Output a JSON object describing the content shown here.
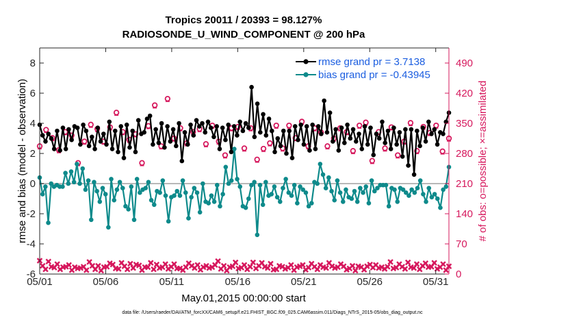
{
  "chart_data": {
    "type": "line",
    "title_line1": "Tropics 20011 / 20393 = 98.127%",
    "title_line2": "RADIOSONDE_U_WIND_COMPONENT @ 200 hPa",
    "xlabel": "May.01,2015 00:00:00 start",
    "ylabel_left": "rmse and bias (model - observation)",
    "ylabel_right": "# of obs: o=possible; ×=assimilated",
    "footer": "data file: /Users/raeder/DAI/ATM_forcXX/CAM6_setup/f.e21.FHIST_BGC.f09_025.CAM6assim.011/Diags_NTrS_2015-05/obs_diag_output.nc",
    "x_ticks": [
      "05/01",
      "05/06",
      "05/11",
      "05/16",
      "05/21",
      "05/26",
      "05/31"
    ],
    "x_tick_days": [
      0,
      5,
      10,
      15,
      20,
      25,
      30
    ],
    "xlim": [
      0,
      31
    ],
    "ylim_left": [
      -6,
      9
    ],
    "y_ticks_left": [
      "-6",
      "-4",
      "-2",
      "0",
      "2",
      "4",
      "6",
      "8"
    ],
    "y_tick_values_left": [
      -6,
      -4,
      -2,
      0,
      2,
      4,
      6,
      8
    ],
    "ylim_right": [
      0,
      525
    ],
    "y_ticks_right": [
      "0",
      "70",
      "140",
      "210",
      "280",
      "350",
      "420",
      "490"
    ],
    "y_tick_values_right": [
      0,
      70,
      140,
      210,
      280,
      350,
      420,
      490
    ],
    "series": [
      {
        "name": "rmse grand pr = 3.7138",
        "axis": "left",
        "color": "#000000",
        "values": [
          3.9,
          3.2,
          2.8,
          3.3,
          3.0,
          2.3,
          3.5,
          2.2,
          3.7,
          2.3,
          3.6,
          2.9,
          3.8,
          3.7,
          2.6,
          3.9,
          3.5,
          2.5,
          3.1,
          2.3,
          3.7,
          2.8,
          3.3,
          2.6,
          4.1,
          2.3,
          3.5,
          2.1,
          3.8,
          1.7,
          3.9,
          2.4,
          3.5,
          2.1,
          4.2,
          3.3,
          3.4,
          4.3,
          4.5,
          2.6,
          3.6,
          2.7,
          4.0,
          2.4,
          3.8,
          2.8,
          3.6,
          2.5,
          4.0,
          1.5,
          3.4,
          2.6,
          3.9,
          3.2,
          4.2,
          3.8,
          4.0,
          3.4,
          4.1,
          3.7,
          3.1,
          3.8,
          2.3,
          3.7,
          2.9,
          3.9,
          2.1,
          3.8,
          3.2,
          4.1,
          3.5,
          4.0,
          3.7,
          6.4,
          3.1,
          5.3,
          3.4,
          4.6,
          3.2,
          4.3,
          3.5,
          2.1,
          3.0,
          2.5,
          3.5,
          2.0,
          3.5,
          1.7,
          3.8,
          2.9,
          3.9,
          2.6,
          3.8,
          2.2,
          3.9,
          2.3,
          3.8,
          3.3,
          5.5,
          3.4,
          4.7,
          2.8,
          3.6,
          2.2,
          3.7,
          2.7,
          3.9,
          3.0,
          3.6,
          2.8,
          3.3,
          2.3,
          3.8,
          2.6,
          3.7,
          1.9,
          3.3,
          3.0,
          4.1,
          2.7,
          3.5,
          2.3,
          3.7,
          2.6,
          3.4,
          1.8,
          3.6,
          1.2,
          3.6,
          0.6,
          3.5,
          2.5,
          3.7,
          2.8,
          4.1,
          3.3,
          3.6,
          2.6,
          3.4,
          3.3,
          4.1,
          4.7
        ]
      },
      {
        "name": "bias grand pr = -0.43945",
        "axis": "left",
        "color": "#0e8a8b",
        "values": [
          0.4,
          -0.7,
          -0.2,
          -2.6,
          0.0,
          -0.2,
          -0.1,
          -0.2,
          -0.2,
          0.7,
          0.0,
          0.8,
          0.1,
          1.3,
          0.0,
          1.0,
          -0.4,
          0.2,
          -2.4,
          0.1,
          -0.5,
          -1.2,
          -0.3,
          -0.7,
          -2.9,
          0.3,
          -1.1,
          -0.4,
          0.1,
          -0.3,
          -1.5,
          -1.7,
          -0.2,
          -2.4,
          0.3,
          -0.6,
          -0.4,
          -0.3,
          0.1,
          -1.1,
          -1.4,
          -0.5,
          -0.6,
          0.2,
          -0.8,
          -2.5,
          -0.9,
          -0.8,
          -0.5,
          -0.8,
          0.2,
          -0.6,
          -2.3,
          -0.9,
          -0.3,
          -0.6,
          -1.9,
          0.0,
          -1.2,
          -1.3,
          -0.8,
          -1.2,
          -0.1,
          -1.5,
          -0.7,
          1.1,
          0.0,
          0.2,
          2.3,
          0.3,
          -0.2,
          -1.5,
          -1.6,
          -1.0,
          -0.1,
          0.1,
          -3.4,
          -0.1,
          -1.4,
          0.1,
          -0.8,
          -0.7,
          -0.2,
          -0.9,
          -1.2,
          -0.3,
          0.3,
          -0.6,
          -0.8,
          -0.1,
          -1.3,
          -0.2,
          -0.4,
          -0.6,
          -1.5,
          -1.3,
          0.1,
          0.0,
          1.3,
          0.6,
          -0.3,
          0.4,
          -0.5,
          -1.1,
          0.2,
          -0.6,
          -1.2,
          -0.4,
          -0.9,
          -1.0,
          -0.5,
          -1.2,
          -0.3,
          -0.6,
          -0.2,
          -1.3,
          0.2,
          -0.5,
          -0.3,
          -0.1,
          -0.1,
          -0.1,
          -1.5,
          -0.3,
          -0.4,
          -1.2,
          -0.3,
          -0.4,
          -0.6,
          -0.8,
          -0.4,
          -0.6,
          -0.3,
          0.2,
          -0.7,
          -1.2,
          -0.3,
          -0.9,
          -0.7,
          -1.0,
          -1.6,
          -0.4,
          -0.2,
          1.1
        ]
      },
      {
        "name": "possible",
        "axis": "right",
        "color": "#d6185d",
        "values": [
          297,
          335,
          316,
          288,
          330,
          322,
          258,
          308,
          347,
          337,
          308,
          341,
          375,
          330,
          312,
          325,
          258,
          344,
          392,
          297,
          407,
          315,
          339,
          304,
          330,
          337,
          302,
          345,
          308,
          276,
          339,
          342,
          292,
          339,
          266,
          291,
          304,
          345,
          292,
          345,
          316,
          354,
          297,
          339,
          329,
          297,
          315,
          339,
          330,
          286,
          345,
          352,
          263,
          330,
          292,
          341,
          276,
          308,
          351,
          286,
          342,
          328,
          345,
          285,
          315
        ]
      },
      {
        "name": "assimilated",
        "axis": "right",
        "color": "#d6185d",
        "values": [
          31,
          19,
          11,
          29,
          17,
          15,
          23,
          11,
          16,
          17,
          21,
          9,
          16,
          13,
          14,
          17,
          9,
          28,
          19,
          11,
          19,
          8,
          16,
          17,
          25,
          22,
          13,
          12,
          26,
          18,
          11,
          24,
          14,
          22,
          20,
          9,
          16,
          16,
          26,
          11,
          22,
          14,
          16,
          23,
          12,
          17,
          23,
          13,
          13,
          9,
          16,
          25,
          19,
          14,
          21,
          10,
          16,
          19,
          14,
          16,
          21,
          30,
          12,
          19,
          8,
          16,
          18,
          27,
          13,
          15,
          21,
          11,
          17,
          27,
          13,
          19,
          26,
          17,
          14,
          24,
          10,
          11,
          19,
          17,
          12,
          15,
          21,
          9,
          16,
          18,
          21,
          10,
          15,
          24,
          17,
          11,
          21,
          16,
          14,
          26,
          18,
          14,
          16,
          23,
          18,
          10,
          13,
          19,
          8,
          18,
          16,
          10,
          18,
          22,
          15,
          21,
          14,
          16,
          12,
          17,
          28,
          13,
          15,
          23,
          17,
          12,
          27,
          16,
          14,
          23,
          11,
          19,
          25,
          16,
          17,
          26,
          12,
          16,
          23,
          9,
          18
        ]
      }
    ],
    "legend": "top-right"
  }
}
